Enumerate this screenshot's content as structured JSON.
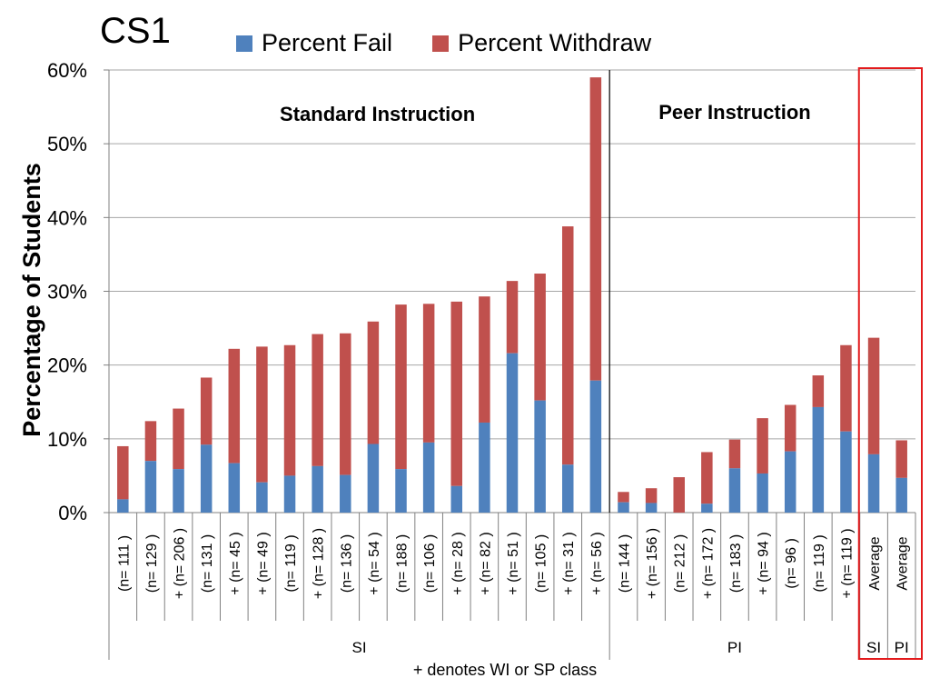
{
  "title": "CS1",
  "legend": [
    {
      "label": "Percent Fail",
      "color": "#4f81bd"
    },
    {
      "label": "Percent Withdraw",
      "color": "#c0504d"
    }
  ],
  "highlight_color": "#e31a1c",
  "chart_data": {
    "type": "bar",
    "stacked": true,
    "ylabel": "Percentage of Students",
    "ylim": [
      0,
      60
    ],
    "yticks": [
      "0%",
      "10%",
      "20%",
      "30%",
      "40%",
      "50%",
      "60%"
    ],
    "grid": true,
    "region_labels": [
      "Standard Instruction",
      "Peer Instruction"
    ],
    "categories": [
      "(n=  111 )",
      "(n=  129 )",
      "+ (n=  206 )",
      "(n=  131 )",
      "+ (n= 45 )",
      "+ (n= 49 )",
      "(n=  119 )",
      "+ (n=  128 )",
      "(n=  136 )",
      "+ (n= 54 )",
      "(n=  188 )",
      "(n=  106 )",
      "+ (n= 28 )",
      "+ (n= 82 )",
      "+ (n= 51 )",
      "(n=  105 )",
      "+ (n= 31 )",
      "+ (n= 56 )",
      "(n=  144 )",
      "+ (n=  156 )",
      "(n=  212 )",
      "+ (n=  172 )",
      "(n=  183 )",
      "+ (n= 94 )",
      "(n= 96 )",
      "(n=  119 )",
      "+ (n=  119 )",
      "Average",
      "Average"
    ],
    "groups": [
      {
        "label": "SI",
        "count": 18
      },
      {
        "label": "PI",
        "count": 9
      },
      {
        "label": "SI",
        "count": 1
      },
      {
        "label": "PI",
        "count": 1
      }
    ],
    "series": [
      {
        "name": "Percent Fail",
        "values": [
          1.8,
          7.0,
          5.9,
          9.2,
          6.7,
          4.1,
          5.0,
          6.3,
          5.1,
          9.3,
          5.9,
          9.5,
          3.6,
          12.2,
          21.6,
          15.2,
          6.5,
          17.9,
          1.4,
          1.3,
          0.0,
          1.2,
          6.0,
          5.3,
          8.3,
          14.3,
          11.0,
          7.9,
          4.7
        ]
      },
      {
        "name": "Percent Withdraw",
        "values": [
          7.2,
          5.4,
          8.2,
          9.1,
          15.5,
          18.4,
          17.7,
          17.9,
          19.2,
          16.6,
          22.3,
          18.8,
          25.0,
          17.1,
          9.8,
          17.2,
          32.3,
          41.1,
          1.4,
          2.0,
          4.8,
          7.0,
          3.9,
          7.5,
          6.3,
          4.3,
          11.7,
          15.8,
          5.1
        ]
      }
    ]
  },
  "footnote": "+ denotes WI or SP class"
}
